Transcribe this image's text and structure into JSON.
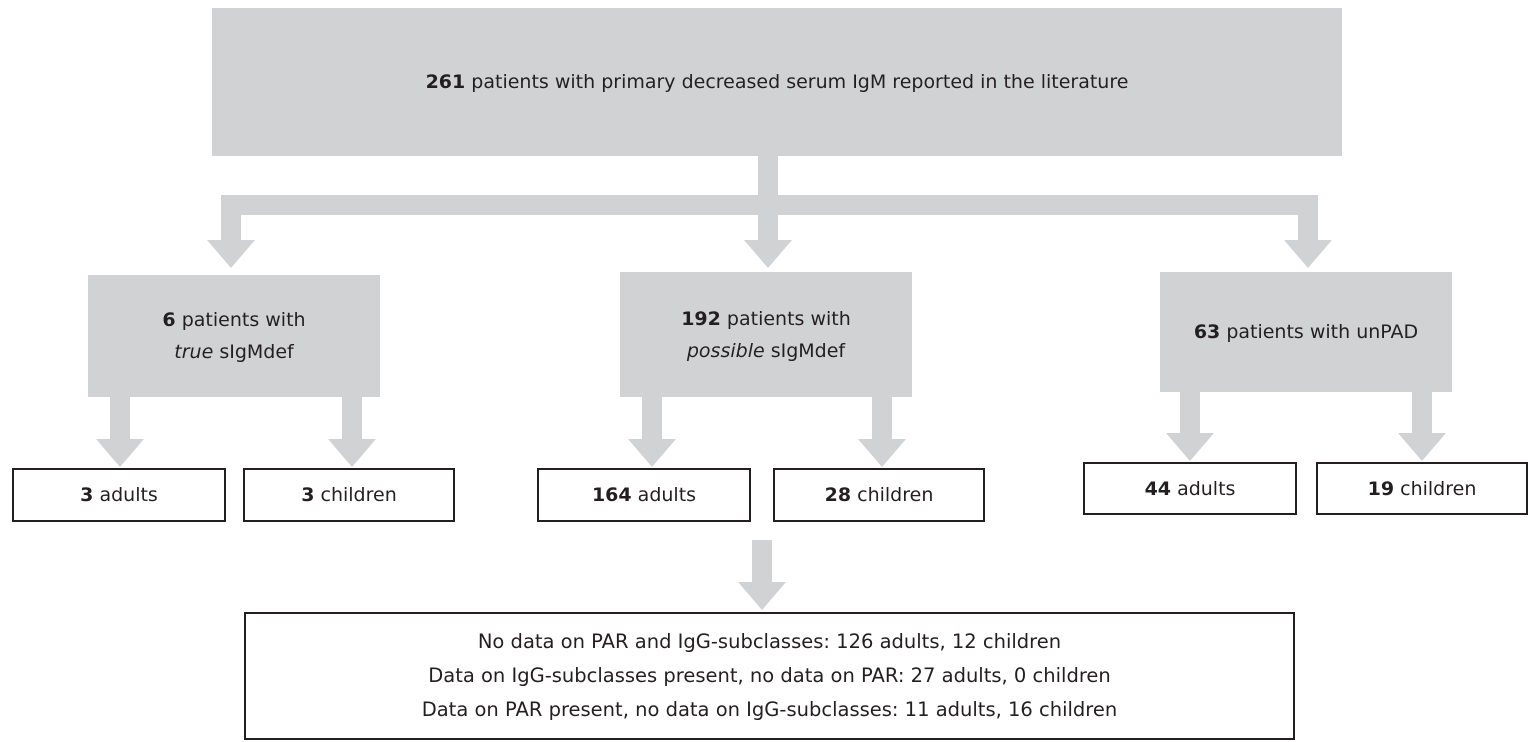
{
  "root": {
    "count": 261,
    "label": "patients with primary decreased serum IgM reported in the literature"
  },
  "groups": [
    {
      "count": 6,
      "label": "patients with",
      "emphasis": "true",
      "suffix": "sIgMdef",
      "subgroups": [
        {
          "count": 3,
          "label": "adults"
        },
        {
          "count": 3,
          "label": "children"
        }
      ]
    },
    {
      "count": 192,
      "label": "patients with",
      "emphasis": "possible",
      "suffix": "sIgMdef",
      "subgroups": [
        {
          "count": 164,
          "label": "adults"
        },
        {
          "count": 28,
          "label": "children"
        }
      ]
    },
    {
      "count": 63,
      "label": "patients with unPAD",
      "subgroups": [
        {
          "count": 44,
          "label": "adults"
        },
        {
          "count": 19,
          "label": "children"
        }
      ]
    }
  ],
  "details": [
    "No data on PAR and IgG-subclasses: 126 adults, 12 children",
    "Data on IgG-subclasses present, no data on PAR: 27 adults, 0 children",
    "Data on PAR present, no data on IgG-subclasses: 11 adults, 16 children"
  ]
}
